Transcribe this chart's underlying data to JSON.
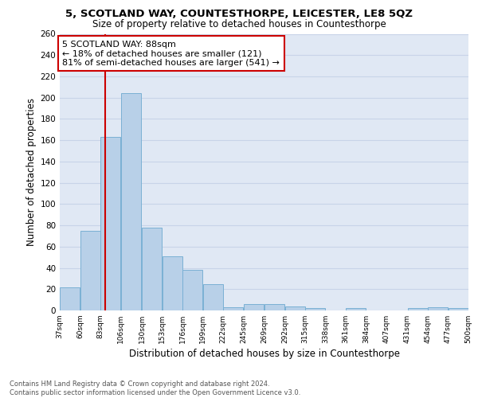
{
  "title1": "5, SCOTLAND WAY, COUNTESTHORPE, LEICESTER, LE8 5QZ",
  "title2": "Size of property relative to detached houses in Countesthorpe",
  "xlabel": "Distribution of detached houses by size in Countesthorpe",
  "ylabel": "Number of detached properties",
  "bar_left_edges": [
    37,
    60,
    83,
    106,
    130,
    153,
    176,
    199,
    222,
    245,
    269,
    292,
    315,
    338,
    361,
    384,
    407,
    431,
    454,
    477
  ],
  "bar_heights": [
    22,
    75,
    163,
    204,
    78,
    51,
    38,
    25,
    3,
    6,
    6,
    4,
    2,
    0,
    2,
    0,
    0,
    2,
    3,
    2
  ],
  "bin_width": 23,
  "bar_color": "#b8d0e8",
  "bar_edge_color": "#7ab0d4",
  "property_size": 88,
  "vline_color": "#cc0000",
  "annotation_text": "5 SCOTLAND WAY: 88sqm\n← 18% of detached houses are smaller (121)\n81% of semi-detached houses are larger (541) →",
  "annotation_box_color": "#ffffff",
  "annotation_box_edge": "#cc0000",
  "ylim": [
    0,
    260
  ],
  "yticks": [
    0,
    20,
    40,
    60,
    80,
    100,
    120,
    140,
    160,
    180,
    200,
    220,
    240,
    260
  ],
  "tick_labels": [
    "37sqm",
    "60sqm",
    "83sqm",
    "106sqm",
    "130sqm",
    "153sqm",
    "176sqm",
    "199sqm",
    "222sqm",
    "245sqm",
    "269sqm",
    "292sqm",
    "315sqm",
    "338sqm",
    "361sqm",
    "384sqm",
    "407sqm",
    "431sqm",
    "454sqm",
    "477sqm",
    "500sqm"
  ],
  "grid_color": "#c8d4e8",
  "background_color": "#e0e8f4",
  "footer_text": "Contains HM Land Registry data © Crown copyright and database right 2024.\nContains public sector information licensed under the Open Government Licence v3.0."
}
